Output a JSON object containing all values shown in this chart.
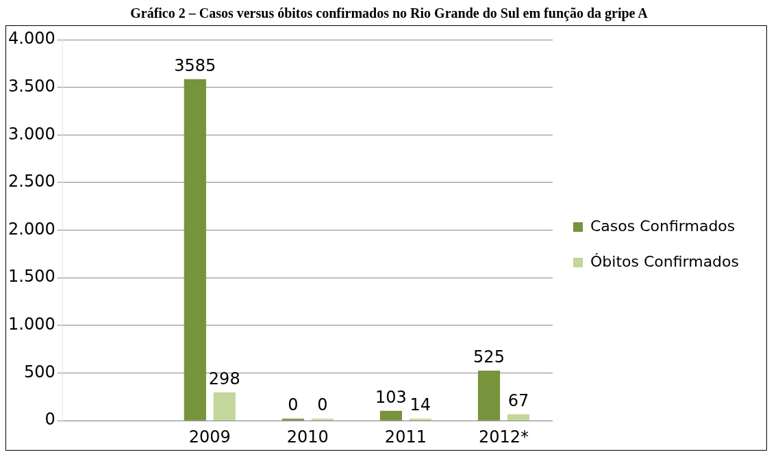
{
  "chart_data": {
    "type": "bar",
    "title": "Gráfico 2 – Casos versus óbitos confirmados no Rio Grande do Sul em função da gripe A",
    "categories": [
      null,
      "2009",
      "2010",
      "2011",
      "2012*"
    ],
    "series": [
      {
        "name": "Casos Confirmados",
        "color": "#77933c",
        "values": [
          null,
          3585,
          0,
          103,
          525
        ]
      },
      {
        "name": "Óbitos Confirmados",
        "color": "#c3d69b",
        "values": [
          null,
          298,
          0,
          14,
          67
        ]
      }
    ],
    "ylim": [
      0,
      4000
    ],
    "yticks": [
      {
        "value": 0,
        "label": "0"
      },
      {
        "value": 500,
        "label": "500"
      },
      {
        "value": 1000,
        "label": "1.000"
      },
      {
        "value": 1500,
        "label": "1.500"
      },
      {
        "value": 2000,
        "label": "2.000"
      },
      {
        "value": 2500,
        "label": "2.500"
      },
      {
        "value": 3000,
        "label": "3.000"
      },
      {
        "value": 3500,
        "label": "3.500"
      },
      {
        "value": 4000,
        "label": "4.000"
      }
    ],
    "grid": "y",
    "legend": "right",
    "data_labels": true
  }
}
